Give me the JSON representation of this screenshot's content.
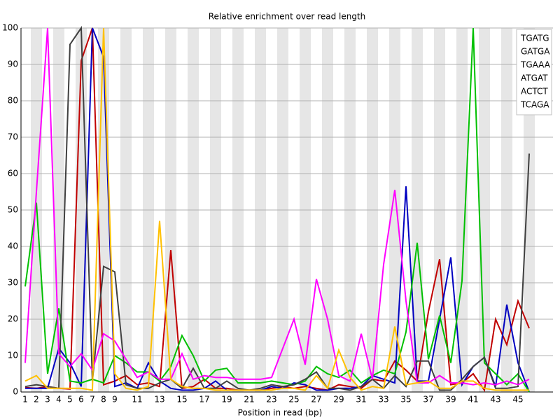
{
  "chart_data": {
    "type": "line",
    "title": "Relative enrichment over read length",
    "x_label": "Position in read (bp)",
    "categories": [
      1,
      2,
      3,
      4,
      5,
      6,
      7,
      8,
      9,
      null,
      11,
      null,
      13,
      null,
      15,
      null,
      17,
      null,
      19,
      null,
      21,
      null,
      23,
      null,
      25,
      null,
      27,
      null,
      29,
      null,
      31,
      null,
      33,
      null,
      35,
      null,
      37,
      null,
      39,
      null,
      41,
      null,
      43,
      null,
      45,
      null
    ],
    "ylim": [
      0,
      100
    ],
    "yticks": [
      0,
      10,
      20,
      30,
      40,
      50,
      60,
      70,
      80,
      90,
      100
    ],
    "grid": true,
    "legend": "top-right",
    "series": [
      {
        "name": "TGATG",
        "color": "#c00000",
        "values": [
          1.2,
          1,
          1.5,
          1,
          0.8,
          91,
          100,
          2,
          3,
          4.5,
          2,
          2.5,
          1.5,
          39,
          1,
          1.5,
          3.5,
          1,
          1,
          0.5,
          0.5,
          0.5,
          1,
          1.5,
          1,
          1.5,
          1,
          0.5,
          2,
          1.5,
          1,
          3.5,
          3,
          8.5,
          6,
          3,
          22,
          36.5,
          2,
          2.5,
          5,
          0.5,
          20,
          13,
          25,
          17.5
        ]
      },
      {
        "name": "GATGA",
        "color": "#0000c0",
        "values": [
          1,
          1,
          1,
          12,
          8,
          1.5,
          100,
          92,
          1.5,
          2.5,
          1,
          8,
          3,
          1,
          0.5,
          0.5,
          1,
          3,
          0.5,
          0.5,
          0.5,
          0.5,
          1.5,
          1,
          2.5,
          2,
          0.5,
          0.5,
          1,
          1,
          1.5,
          4.5,
          3.5,
          2.5,
          56.5,
          3,
          3,
          20,
          37,
          2,
          7,
          9.5,
          1.5,
          24,
          8,
          0
        ]
      },
      {
        "name": "TGAAA",
        "color": "#00c000",
        "values": [
          29,
          52,
          5,
          23,
          3,
          2.5,
          3.5,
          2.5,
          10,
          8,
          5.5,
          5.5,
          3,
          7,
          15.5,
          10,
          3,
          6,
          6.5,
          2.5,
          2.5,
          2.5,
          3,
          2.5,
          2,
          3,
          7,
          5,
          4,
          6,
          2.5,
          4.5,
          6,
          5,
          16.5,
          41,
          9,
          21,
          8,
          30.5,
          100,
          8,
          5,
          2,
          5,
          0
        ]
      },
      {
        "name": "ATGAT",
        "color": "#404040",
        "values": [
          1.5,
          2,
          1.5,
          1,
          95.5,
          100,
          3,
          34.5,
          33,
          2,
          1,
          1,
          2.5,
          3.5,
          1,
          6.5,
          1,
          1,
          3,
          1,
          0.5,
          1,
          2,
          1.5,
          2,
          3.5,
          5.5,
          1,
          1,
          0.5,
          1.5,
          3.5,
          1,
          4.5,
          1.5,
          8.5,
          8.5,
          0.5,
          0.5,
          3.5,
          7,
          9.5,
          1,
          1,
          1.5,
          65.5
        ]
      },
      {
        "name": "ACTCT",
        "color": "#ff00ff",
        "values": [
          8,
          55,
          100,
          10.5,
          7,
          10.5,
          6,
          16,
          14,
          9,
          4,
          5.5,
          3.5,
          3.5,
          10.5,
          3.5,
          4.5,
          4,
          4,
          3.5,
          3.5,
          3.5,
          4,
          12,
          20,
          7.5,
          31,
          20,
          4.5,
          3,
          16,
          3.5,
          35,
          55.5,
          25,
          2.5,
          2.5,
          4.5,
          2.5,
          2.5,
          2,
          2.5,
          2,
          3,
          2,
          3.5
        ]
      },
      {
        "name": "TCAGA",
        "color": "#ffc000",
        "values": [
          3,
          4.5,
          1,
          1,
          1,
          1,
          0.5,
          100,
          5,
          1,
          0.5,
          1.5,
          47,
          3.5,
          1.5,
          1,
          1,
          0.5,
          0.5,
          0.5,
          0.5,
          0.5,
          0.5,
          1,
          1,
          0.5,
          4.5,
          1,
          11.5,
          4,
          0.5,
          1.5,
          1,
          18,
          2,
          2.5,
          3,
          1,
          1,
          3,
          3,
          1,
          0.5,
          0.5,
          0.5,
          0.5
        ]
      }
    ]
  }
}
